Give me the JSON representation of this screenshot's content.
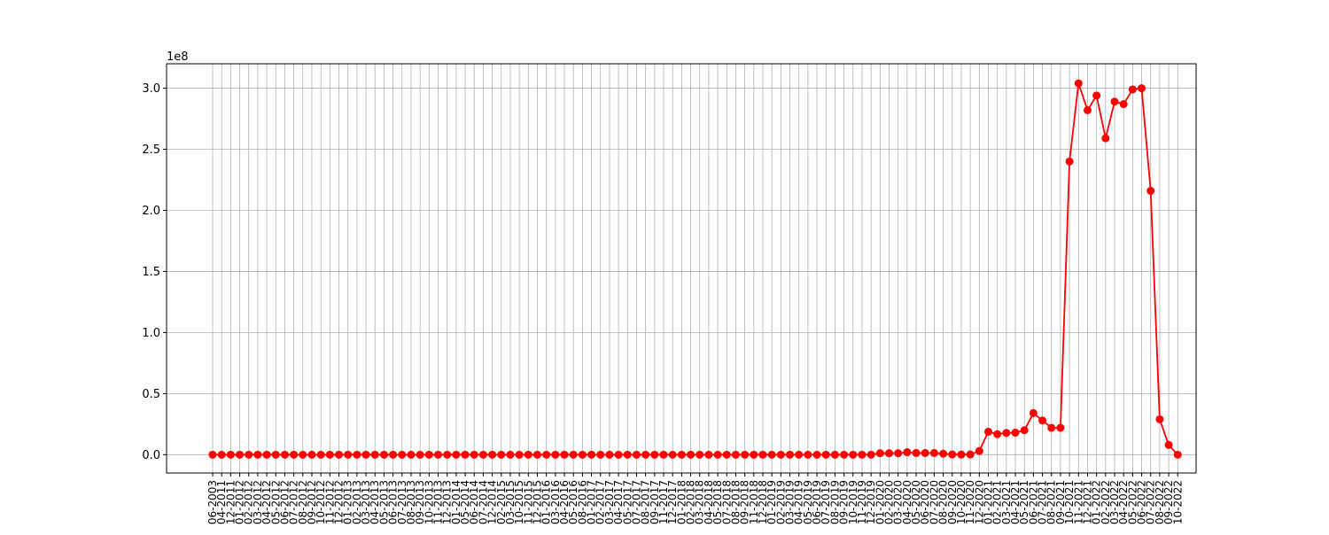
{
  "chart_data": {
    "type": "line",
    "title": "",
    "xlabel": "",
    "ylabel": "",
    "y_scale_label": "1e8",
    "ylim": [
      -0.15,
      3.2
    ],
    "yticks": [
      0.0,
      0.5,
      1.0,
      1.5,
      2.0,
      2.5,
      3.0
    ],
    "ytick_labels": [
      "0.0",
      "0.5",
      "1.0",
      "1.5",
      "2.0",
      "2.5",
      "3.0"
    ],
    "grid": true,
    "colors": {
      "line": "#ff0000",
      "marker": "#ff0000",
      "grid": "#b0b0b0",
      "axes": "#000000"
    },
    "x": [
      "06-2003",
      "04-2011",
      "12-2011",
      "01-2012",
      "02-2012",
      "03-2012",
      "04-2012",
      "05-2012",
      "06-2012",
      "07-2012",
      "08-2012",
      "09-2012",
      "10-2012",
      "11-2012",
      "12-2012",
      "01-2013",
      "02-2013",
      "03-2013",
      "04-2013",
      "05-2013",
      "06-2013",
      "07-2013",
      "08-2013",
      "09-2013",
      "10-2013",
      "11-2013",
      "12-2013",
      "01-2014",
      "05-2014",
      "06-2014",
      "07-2014",
      "12-2014",
      "02-2015",
      "03-2015",
      "10-2015",
      "11-2015",
      "12-2015",
      "01-2016",
      "03-2016",
      "04-2016",
      "05-2016",
      "08-2016",
      "01-2017",
      "02-2017",
      "03-2017",
      "04-2017",
      "05-2017",
      "07-2017",
      "08-2017",
      "09-2017",
      "11-2017",
      "12-2017",
      "01-2018",
      "02-2018",
      "03-2018",
      "04-2018",
      "05-2018",
      "07-2018",
      "08-2018",
      "09-2018",
      "11-2018",
      "12-2018",
      "01-2019",
      "02-2019",
      "03-2019",
      "04-2019",
      "05-2019",
      "06-2019",
      "07-2019",
      "08-2019",
      "09-2019",
      "10-2019",
      "11-2019",
      "12-2019",
      "01-2020",
      "02-2020",
      "03-2020",
      "04-2020",
      "05-2020",
      "06-2020",
      "07-2020",
      "08-2020",
      "09-2020",
      "10-2020",
      "11-2020",
      "12-2020",
      "01-2021",
      "02-2021",
      "03-2021",
      "04-2021",
      "05-2021",
      "06-2021",
      "07-2021",
      "08-2021",
      "09-2021",
      "10-2021",
      "11-2021",
      "12-2021",
      "01-2022",
      "02-2022",
      "03-2022",
      "04-2022",
      "05-2022",
      "06-2022",
      "07-2022",
      "08-2022",
      "09-2022",
      "10-2022"
    ],
    "series": [
      {
        "values": [
          0,
          0,
          0,
          0,
          0,
          0,
          0,
          0,
          0,
          0,
          0,
          0,
          0,
          0,
          0,
          0,
          0,
          0,
          0,
          0,
          0,
          0,
          0,
          0,
          0,
          0,
          0,
          0,
          0,
          0,
          0,
          0,
          0,
          0,
          0,
          0,
          0,
          0,
          0,
          0,
          0,
          0,
          0,
          0,
          0,
          0,
          0,
          0,
          0,
          0,
          0,
          0,
          0,
          0,
          0,
          0,
          0,
          0,
          0,
          0,
          0,
          0,
          0,
          0,
          0,
          0,
          0,
          0,
          0,
          0,
          0,
          0,
          0,
          0,
          0.012,
          0.012,
          0.012,
          0.02,
          0.014,
          0.014,
          0.014,
          0.008,
          0.002,
          0.001,
          0.002,
          0.03,
          0.188,
          0.168,
          0.178,
          0.18,
          0.2,
          0.34,
          0.28,
          0.22,
          0.22,
          2.4,
          3.04,
          2.82,
          2.94,
          2.59,
          2.89,
          2.87,
          2.99,
          3.0,
          2.16,
          0.29,
          0.08,
          0.0
        ]
      }
    ]
  }
}
